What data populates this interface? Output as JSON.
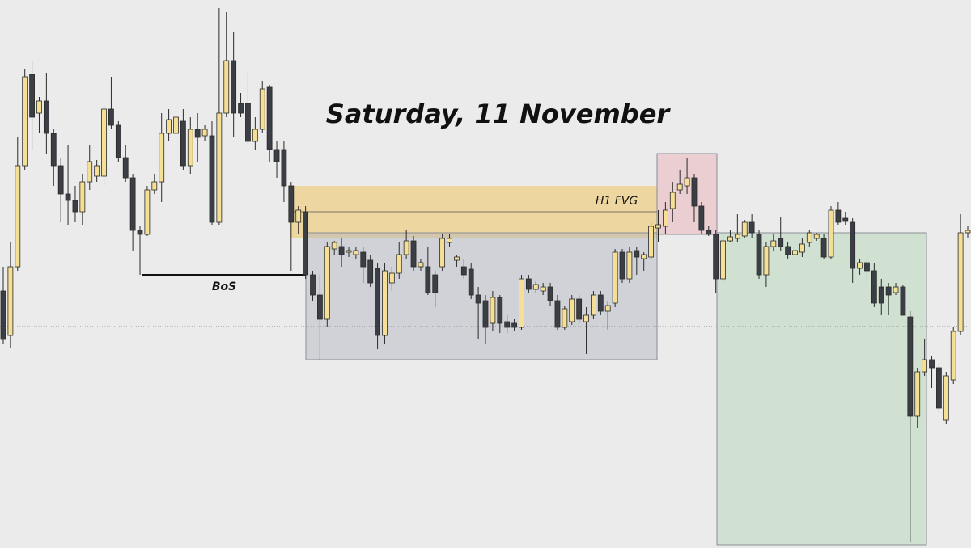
{
  "chart_data": {
    "type": "candlestick",
    "title": "Saturday, 11 November",
    "ylim": [
      32.2,
      100
    ],
    "colors": {
      "up": "#f4df95",
      "down": "#3b3e44",
      "outline": "#2a2a2a"
    },
    "open": [
      64,
      58.5,
      67,
      79.5,
      90.8,
      86,
      87.5,
      83.5,
      79.5,
      76,
      75.2,
      73.8,
      77.5,
      78.2,
      78.2,
      86.5,
      84.5,
      80.5,
      78,
      71.5,
      71,
      76.5,
      77.5,
      83.5,
      83.5,
      85,
      79.5,
      84,
      83.2,
      83.2,
      72.5,
      86,
      92.5,
      87.2,
      87.2,
      82.5,
      84,
      89.2,
      81.5,
      81.5,
      77,
      72.5,
      73.8,
      66,
      63.5,
      60.5,
      69.2,
      69.5,
      68.8,
      68.5,
      68.8,
      67.8,
      66.8,
      58.5,
      65,
      66.2,
      68.5,
      70.2,
      67,
      67,
      66,
      67,
      70,
      67.8,
      67,
      66.7,
      63.5,
      62.8,
      60,
      63.2,
      60.2,
      60,
      59.5,
      65.5,
      64.2,
      64,
      64.5,
      62.8,
      59.5,
      60.2,
      63,
      60.2,
      61,
      63.5,
      61.5,
      62.5,
      68.8,
      65.5,
      69,
      68,
      68.2,
      71.8,
      72,
      74.2,
      76.5,
      77,
      78,
      74.5,
      71.5,
      71,
      65.5,
      70.2,
      70.5,
      70.8,
      72.5,
      71,
      66,
      69.5,
      70.5,
      69.5,
      68.5,
      68.8,
      70,
      70.5,
      70.5,
      68.2,
      74,
      73,
      72.5,
      66.8,
      67.5,
      66.5,
      64.5,
      64.5,
      63.8,
      64.5,
      60.8,
      48.5,
      54,
      55.5,
      54.5,
      48,
      53,
      59,
      71.2
    ],
    "high": [
      67,
      70,
      83,
      91.5,
      92.5,
      88,
      91,
      84,
      80.5,
      82,
      77,
      78.5,
      82,
      80.2,
      87,
      90.5,
      85,
      82,
      78.5,
      72,
      77,
      78.5,
      86,
      86.5,
      87,
      86.5,
      85.5,
      86,
      84.5,
      85,
      99,
      98.5,
      96,
      88.5,
      91,
      85.5,
      90,
      89.5,
      82.5,
      82.5,
      77.5,
      74.5,
      74.5,
      66.5,
      66,
      70,
      70.2,
      70.5,
      69.5,
      69.5,
      69.5,
      68.5,
      67.5,
      67.5,
      67,
      70,
      71.5,
      70.8,
      68,
      69.5,
      66.5,
      71,
      71,
      68.5,
      68,
      67.5,
      64.5,
      63.5,
      64,
      63.5,
      61,
      60.5,
      66,
      66,
      65.2,
      65,
      65,
      63.5,
      62.2,
      63.5,
      63.5,
      62,
      64,
      64,
      62.8,
      69.2,
      69.2,
      69.5,
      69.5,
      68.8,
      72.5,
      74,
      75,
      77.5,
      79,
      80.5,
      78.5,
      75,
      72,
      71.5,
      71,
      71.5,
      73.5,
      72.8,
      73.5,
      71.5,
      70,
      71,
      73.2,
      70,
      69.5,
      70.5,
      71.5,
      71.2,
      71,
      74.5,
      75,
      73.8,
      73,
      68,
      68,
      67.5,
      65.5,
      65,
      65,
      64.8,
      61.5,
      54.5,
      58,
      56,
      55,
      54,
      59.5,
      73.5,
      72
    ],
    "low": [
      57.5,
      57,
      66.5,
      79,
      81.5,
      83.5,
      81,
      77,
      72.5,
      72.2,
      72.5,
      72.2,
      76.5,
      77.5,
      77,
      84,
      80,
      77.5,
      69,
      66,
      70.8,
      76,
      75,
      82.5,
      77.5,
      79,
      78.5,
      80,
      82.5,
      72.2,
      72.2,
      85.5,
      83,
      85.5,
      82,
      81.5,
      83.5,
      80,
      78,
      75,
      66.5,
      71,
      65.5,
      62.8,
      55.5,
      59.5,
      68.5,
      67,
      68.2,
      68,
      65,
      64.5,
      56.8,
      57.5,
      64,
      65.5,
      68,
      66.5,
      66.5,
      63.5,
      62,
      66.5,
      69.5,
      67,
      65.5,
      63,
      58,
      57.5,
      59,
      58.8,
      58.8,
      59,
      59.2,
      63.8,
      63.8,
      63.5,
      62.2,
      59.2,
      59.2,
      59.8,
      60,
      56.2,
      60.5,
      61,
      59.2,
      62,
      65,
      65,
      66,
      66.5,
      67.8,
      70,
      71,
      72.5,
      76,
      76,
      72.5,
      71,
      70.8,
      63.8,
      65,
      70,
      70,
      70.5,
      70.5,
      65.5,
      64.5,
      69,
      69,
      68,
      67.8,
      68.2,
      69.5,
      70.2,
      68,
      68,
      72.2,
      72.2,
      65,
      66,
      65,
      62,
      61,
      61,
      63.5,
      61,
      33,
      47,
      53.5,
      52,
      49,
      47.5,
      52.5,
      58.5,
      70.5
    ],
    "close": [
      58,
      67,
      79.5,
      90.5,
      85.5,
      87.5,
      83.5,
      79.5,
      76,
      75.2,
      73.8,
      77.5,
      80,
      79.5,
      86.5,
      84.5,
      80.5,
      78,
      71.5,
      71,
      76.5,
      77.5,
      83.5,
      85.2,
      85.5,
      79.5,
      84,
      83,
      84,
      72.5,
      86,
      92.5,
      86,
      86,
      82.5,
      84,
      89,
      81.5,
      80,
      77,
      72.5,
      74,
      66,
      63.5,
      60.5,
      69.5,
      70,
      68.5,
      69,
      69,
      67,
      65,
      58.5,
      66.5,
      66.2,
      68.5,
      70.2,
      67,
      67.5,
      63.8,
      63.8,
      70.5,
      70.5,
      68.2,
      66,
      63.5,
      62.5,
      59.5,
      63.2,
      60,
      59.5,
      59.5,
      65.5,
      64.2,
      64.8,
      64.5,
      62.8,
      59.5,
      61.8,
      63,
      60.5,
      61,
      63.5,
      61.5,
      62.2,
      68.8,
      65.5,
      68.8,
      68.2,
      68.5,
      72,
      72.2,
      74,
      76.2,
      77.2,
      78,
      74.5,
      71.5,
      71,
      65.5,
      70.2,
      70.7,
      71,
      72.5,
      71.2,
      66,
      69.5,
      70.2,
      69.5,
      68.5,
      69,
      69.8,
      71.2,
      71,
      68.2,
      74,
      72.5,
      72.6,
      66.8,
      67.5,
      66.5,
      62.5,
      62.5,
      63.5,
      64.5,
      61,
      48.5,
      54,
      55.5,
      54.5,
      49.5,
      53.5,
      59,
      71.2,
      71.5
    ],
    "fvg": {
      "high": 77,
      "low": 70.5,
      "mid": 73.8,
      "label": "H1 FVG"
    },
    "range_box": {
      "high": 71.2,
      "low": 55.5
    },
    "premium_box": {
      "high": 81,
      "low": 71
    },
    "target_box": {
      "high": 71.2,
      "low": 32.6
    },
    "level_line": 59.6,
    "bos": {
      "value": 66,
      "label": "BoS"
    }
  }
}
